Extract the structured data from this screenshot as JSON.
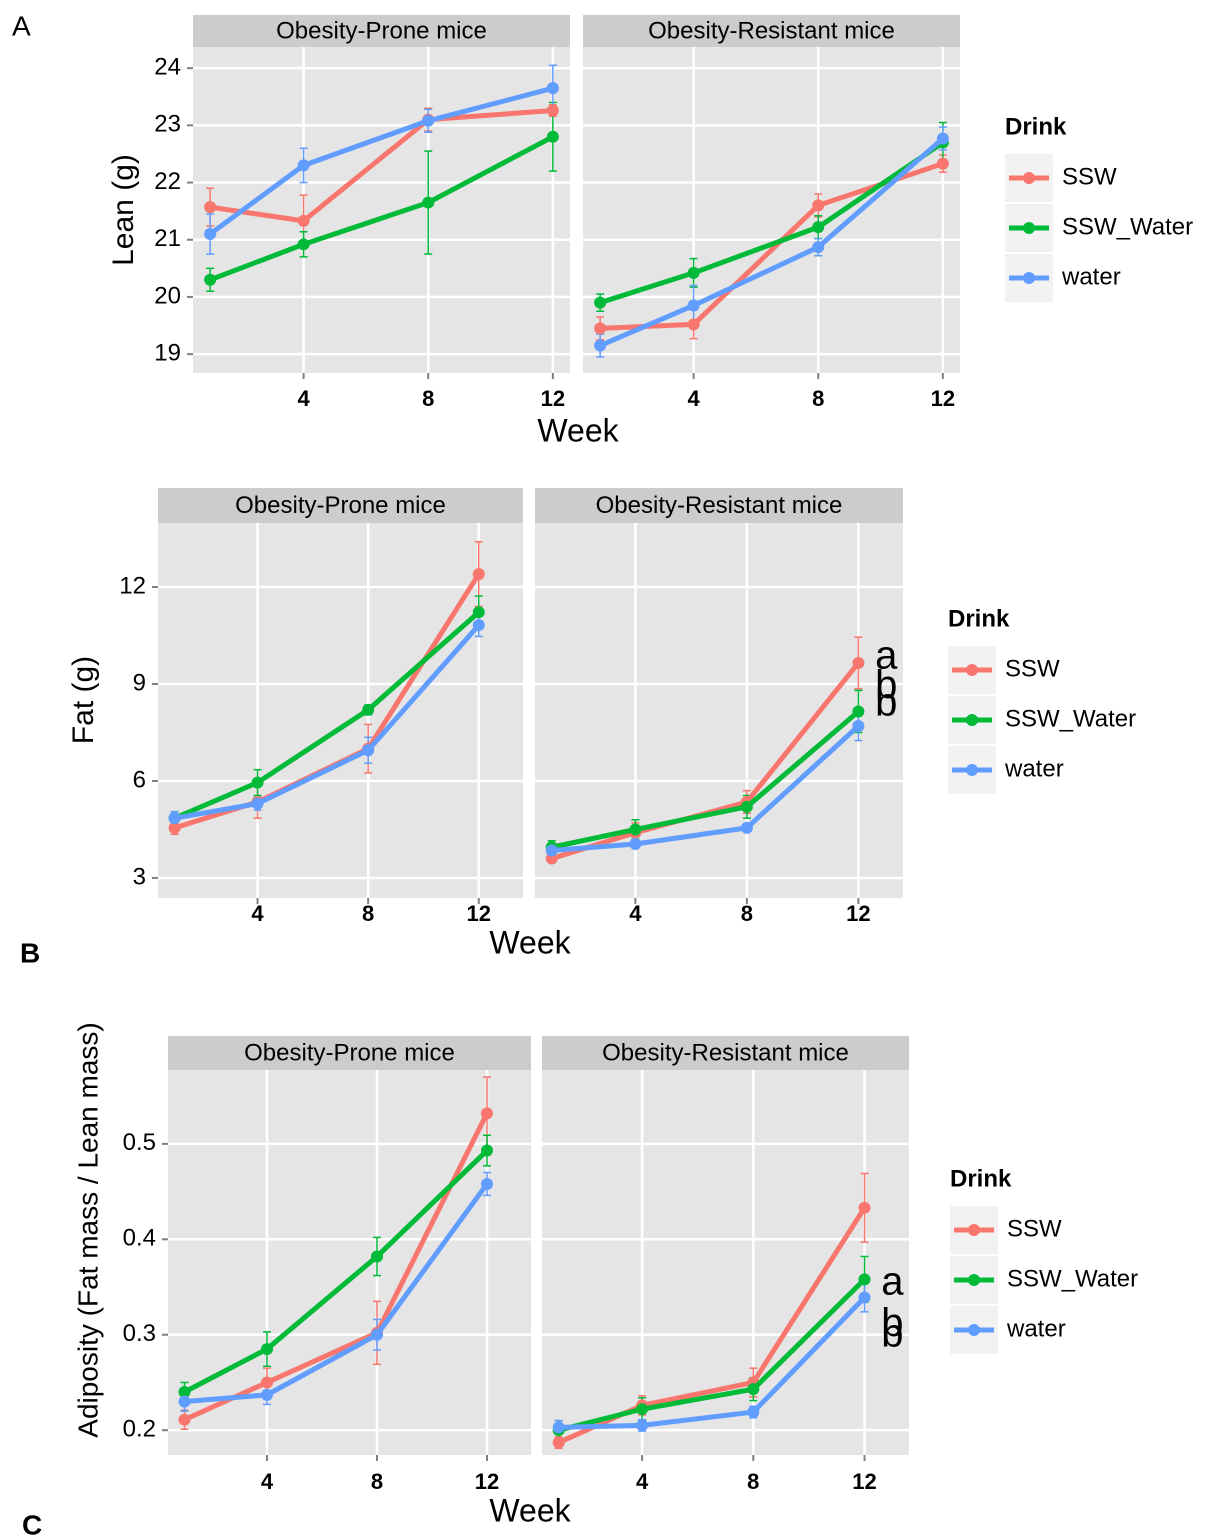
{
  "chart_data": [
    {
      "type": "line",
      "label": "A",
      "x": [
        1,
        4,
        8,
        12
      ],
      "xlim": [
        0.45,
        12.55
      ],
      "xticks": [
        4,
        8,
        12
      ],
      "ylim": [
        18.67,
        24.37
      ],
      "yticks": [
        19,
        20,
        21,
        22,
        23,
        24
      ],
      "grid": true,
      "x_label": "Week",
      "y_label": "Lean (g)",
      "legend_title": "Drink",
      "legend": "right",
      "facets": [
        {
          "title": "Obesity-Prone mice",
          "series": [
            {
              "name": "SSW",
              "color": "#F8766D",
              "values": [
                21.57,
                21.33,
                23.1,
                23.26
              ],
              "errors": [
                0.33,
                0.45,
                0.2,
                0.1
              ]
            },
            {
              "name": "SSW_Water",
              "color": "#00BA38",
              "values": [
                20.3,
                20.92,
                21.65,
                22.8
              ],
              "errors": [
                0.2,
                0.22,
                0.9,
                0.6
              ]
            },
            {
              "name": "water",
              "color": "#619CFF",
              "values": [
                21.1,
                22.3,
                23.08,
                23.65
              ],
              "errors": [
                0.35,
                0.3,
                0.2,
                0.4
              ]
            }
          ]
        },
        {
          "title": "Obesity-Resistant mice",
          "series": [
            {
              "name": "SSW",
              "color": "#F8766D",
              "values": [
                19.45,
                19.52,
                21.6,
                22.33
              ],
              "errors": [
                0.2,
                0.25,
                0.2,
                0.15
              ]
            },
            {
              "name": "SSW_Water",
              "color": "#00BA38",
              "values": [
                19.9,
                20.42,
                21.22,
                22.7
              ],
              "errors": [
                0.15,
                0.25,
                0.2,
                0.35
              ]
            },
            {
              "name": "water",
              "color": "#619CFF",
              "values": [
                19.15,
                19.85,
                20.87,
                22.77
              ],
              "errors": [
                0.2,
                0.35,
                0.15,
                0.2
              ]
            }
          ]
        }
      ]
    },
    {
      "type": "line",
      "label": "B",
      "x": [
        1,
        4,
        8,
        12
      ],
      "xlim": [
        0.4,
        13.6
      ],
      "xticks": [
        4,
        8,
        12
      ],
      "ylim": [
        2.38,
        13.98
      ],
      "yticks": [
        3,
        6,
        9,
        12
      ],
      "grid": true,
      "x_label": "Week",
      "y_label": "Fat (g)",
      "legend_title": "Drink",
      "legend": "right",
      "facets": [
        {
          "title": "Obesity-Prone mice",
          "series": [
            {
              "name": "SSW",
              "color": "#F8766D",
              "values": [
                4.55,
                5.35,
                7.0,
                12.4
              ],
              "errors": [
                0.2,
                0.5,
                0.75,
                1.0
              ]
            },
            {
              "name": "SSW_Water",
              "color": "#00BA38",
              "values": [
                4.85,
                5.95,
                8.2,
                11.22
              ],
              "errors": [
                0.2,
                0.4,
                0.15,
                0.5
              ]
            },
            {
              "name": "water",
              "color": "#619CFF",
              "values": [
                4.85,
                5.3,
                6.95,
                10.82
              ],
              "errors": [
                0.2,
                0.2,
                0.4,
                0.35
              ]
            }
          ]
        },
        {
          "title": "Obesity-Resistant mice",
          "series": [
            {
              "name": "SSW",
              "color": "#F8766D",
              "values": [
                3.6,
                4.4,
                5.35,
                9.65
              ],
              "errors": [
                0.1,
                0.3,
                0.35,
                0.8
              ]
            },
            {
              "name": "SSW_Water",
              "color": "#00BA38",
              "values": [
                3.95,
                4.5,
                5.2,
                8.15
              ],
              "errors": [
                0.2,
                0.3,
                0.35,
                0.65
              ]
            },
            {
              "name": "water",
              "color": "#619CFF",
              "values": [
                3.85,
                4.05,
                4.55,
                7.7
              ],
              "errors": [
                0.15,
                0.1,
                0.1,
                0.45
              ]
            }
          ],
          "annotations": [
            {
              "text": "a",
              "x": 13,
              "y": 9.8,
              "color": "#F8766D"
            },
            {
              "text": "b",
              "x": 13,
              "y": 8.9,
              "color": "#00BA38"
            },
            {
              "text": "b",
              "x": 13,
              "y": 8.35,
              "color": "#619CFF"
            }
          ]
        }
      ]
    },
    {
      "type": "line",
      "label": "C",
      "x": [
        1,
        4,
        8,
        12
      ],
      "xlim": [
        0.4,
        13.6
      ],
      "xticks": [
        4,
        8,
        12
      ],
      "ylim": [
        0.174,
        0.5774
      ],
      "yticks": [
        0.2,
        0.3,
        0.4,
        0.5
      ],
      "grid": true,
      "x_label": "Week",
      "y_label": "Adiposity (Fat mass / Lean mass)",
      "legend_title": "Drink",
      "legend": "right",
      "facets": [
        {
          "title": "Obesity-Prone mice",
          "series": [
            {
              "name": "SSW",
              "color": "#F8766D",
              "values": [
                0.211,
                0.25,
                0.302,
                0.532
              ],
              "errors": [
                0.01,
                0.015,
                0.033,
                0.038
              ]
            },
            {
              "name": "SSW_Water",
              "color": "#00BA38",
              "values": [
                0.24,
                0.285,
                0.382,
                0.493
              ],
              "errors": [
                0.01,
                0.018,
                0.02,
                0.016
              ]
            },
            {
              "name": "water",
              "color": "#619CFF",
              "values": [
                0.23,
                0.237,
                0.3,
                0.458
              ],
              "errors": [
                0.01,
                0.01,
                0.016,
                0.012
              ]
            }
          ]
        },
        {
          "title": "Obesity-Resistant mice",
          "series": [
            {
              "name": "SSW",
              "color": "#F8766D",
              "values": [
                0.187,
                0.226,
                0.25,
                0.433
              ],
              "errors": [
                0.006,
                0.01,
                0.015,
                0.036
              ]
            },
            {
              "name": "SSW_Water",
              "color": "#00BA38",
              "values": [
                0.2,
                0.222,
                0.243,
                0.358
              ],
              "errors": [
                0.01,
                0.012,
                0.012,
                0.024
              ]
            },
            {
              "name": "water",
              "color": "#619CFF",
              "values": [
                0.203,
                0.205,
                0.219,
                0.339
              ],
              "errors": [
                0.007,
                0.006,
                0.006,
                0.015
              ]
            }
          ],
          "annotations": [
            {
              "text": "a",
              "x": 13,
              "y": 0.353,
              "color": "#F8766D"
            },
            {
              "text": "b",
              "x": 13,
              "y": 0.31,
              "color": "#00BA38"
            },
            {
              "text": "b",
              "x": 13,
              "y": 0.299,
              "color": "#619CFF"
            }
          ]
        }
      ]
    }
  ]
}
